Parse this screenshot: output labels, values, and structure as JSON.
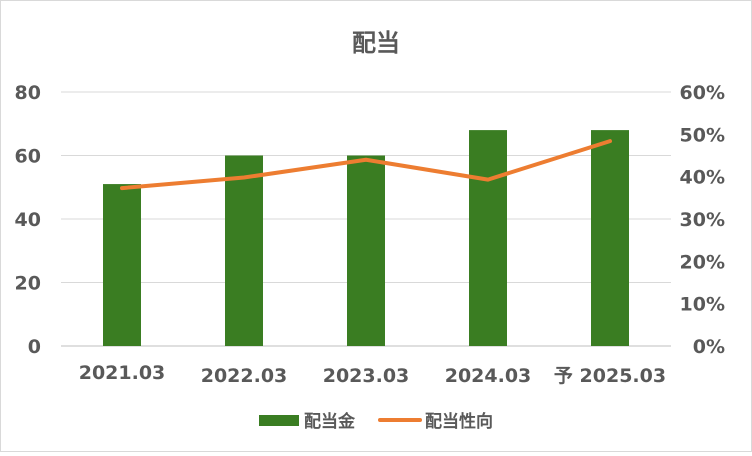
{
  "chart_data": {
    "type": "bar",
    "title": "配当",
    "categories": [
      "2021.03",
      "2022.03",
      "2023.03",
      "2024.03",
      "予 2025.03"
    ],
    "series": [
      {
        "name": "配当金",
        "type": "bar",
        "axis": "left",
        "color": "#3a7d22",
        "values": [
          51,
          60,
          60,
          68,
          68
        ]
      },
      {
        "name": "配当性向",
        "type": "line",
        "axis": "right",
        "color": "#ed7d31",
        "values": [
          37.3,
          39.8,
          44.0,
          39.3,
          48.4
        ]
      }
    ],
    "ylim": [
      0,
      80
    ],
    "y_ticks": [
      "0",
      "20",
      "40",
      "60",
      "80"
    ],
    "y2lim": [
      0,
      60
    ],
    "y2_ticks": [
      "0%",
      "10%",
      "20%",
      "30%",
      "40%",
      "50%",
      "60%"
    ],
    "grid": true,
    "legend_position": "bottom"
  }
}
